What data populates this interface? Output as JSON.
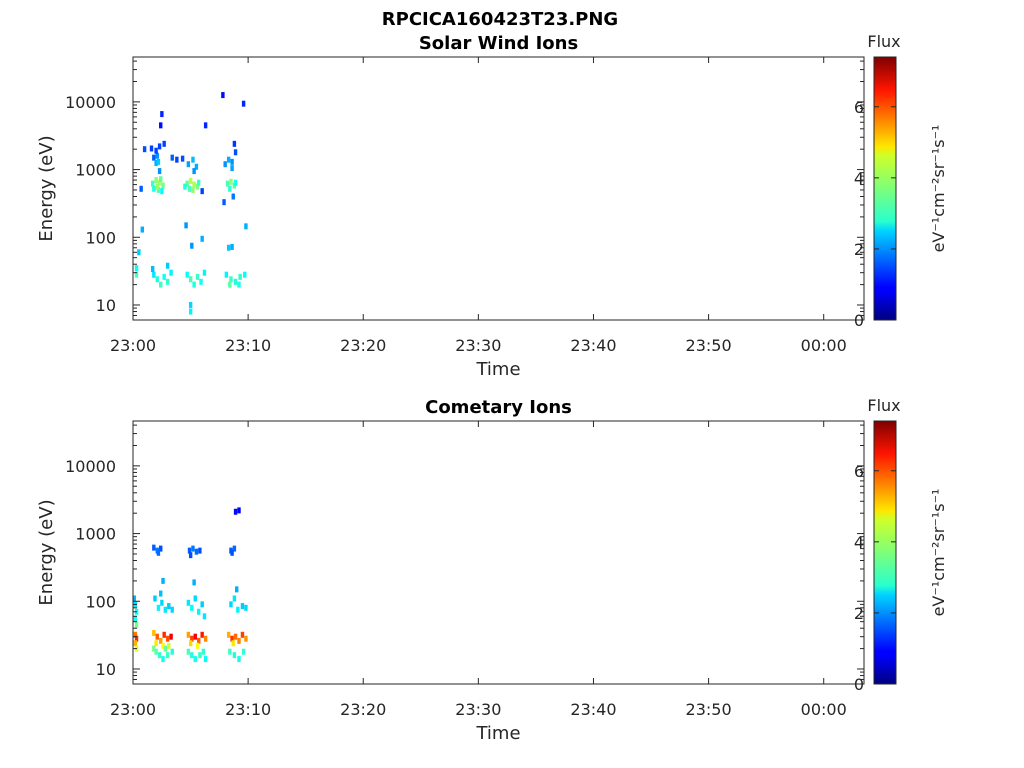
{
  "figure_title": "RPCICA160423T23.PNG",
  "colorbar": {
    "title": "Flux",
    "label": "eV⁻¹cm⁻²sr⁻¹s⁻¹",
    "range": [
      0,
      7.4
    ],
    "ticks": [
      "0",
      "2",
      "4",
      "6"
    ],
    "colormap": "jet"
  },
  "chart_data": [
    {
      "type": "heatmap",
      "title": "Solar Wind Ions",
      "xlabel": "Time",
      "ylabel": "Energy (eV)",
      "xlim_minutes": [
        0,
        63.5
      ],
      "x_ticks": [
        "23:00",
        "23:10",
        "23:20",
        "23:30",
        "23:40",
        "23:50",
        "00:00"
      ],
      "ylim": [
        6,
        46000
      ],
      "yscale": "log",
      "y_ticks": [
        "10",
        "100",
        "1000",
        "10000"
      ],
      "cells": [
        [
          0.3,
          35,
          2.8
        ],
        [
          0.3,
          28,
          3.3
        ],
        [
          0.7,
          520,
          1.6
        ],
        [
          1.0,
          2000,
          1.5
        ],
        [
          0.8,
          130,
          2.2
        ],
        [
          0.5,
          60,
          2.4
        ],
        [
          1.6,
          2050,
          1.4
        ],
        [
          1.8,
          1500,
          1.6
        ],
        [
          2.0,
          1250,
          2.2
        ],
        [
          2.1,
          1600,
          2.0
        ],
        [
          2.2,
          1300,
          2.4
        ],
        [
          2.3,
          2200,
          1.4
        ],
        [
          2.4,
          4500,
          1.0
        ],
        [
          2.5,
          6600,
          1.2
        ],
        [
          2.7,
          2400,
          1.4
        ],
        [
          2.0,
          1900,
          1.4
        ],
        [
          2.3,
          950,
          2.0
        ],
        [
          1.7,
          620,
          3.2
        ],
        [
          2.0,
          700,
          3.8
        ],
        [
          2.3,
          640,
          4.0
        ],
        [
          2.6,
          580,
          3.6
        ],
        [
          1.8,
          520,
          3.0
        ],
        [
          2.2,
          500,
          3.4
        ],
        [
          2.5,
          480,
          2.8
        ],
        [
          2.1,
          560,
          3.9
        ],
        [
          2.4,
          720,
          3.5
        ],
        [
          1.8,
          28,
          2.6
        ],
        [
          2.1,
          24,
          3.0
        ],
        [
          2.4,
          20,
          3.2
        ],
        [
          2.7,
          26,
          2.9
        ],
        [
          3.0,
          22,
          3.1
        ],
        [
          3.3,
          30,
          2.7
        ],
        [
          1.7,
          34,
          2.3
        ],
        [
          3.0,
          38,
          2.4
        ],
        [
          3.4,
          1500,
          1.6
        ],
        [
          3.8,
          1400,
          1.4
        ],
        [
          4.3,
          1450,
          1.5
        ],
        [
          4.6,
          150,
          2.0
        ],
        [
          4.8,
          1200,
          2.1
        ],
        [
          5.2,
          1400,
          2.3
        ],
        [
          5.5,
          1100,
          2.2
        ],
        [
          5.3,
          950,
          2.0
        ],
        [
          4.7,
          620,
          3.5
        ],
        [
          5.0,
          680,
          4.1
        ],
        [
          5.3,
          600,
          4.0
        ],
        [
          5.6,
          560,
          3.7
        ],
        [
          4.9,
          520,
          3.3
        ],
        [
          5.2,
          500,
          3.8
        ],
        [
          5.7,
          640,
          3.2
        ],
        [
          4.5,
          560,
          3.0
        ],
        [
          6.0,
          480,
          1.4
        ],
        [
          6.3,
          4500,
          1.2
        ],
        [
          6.0,
          95,
          2.2
        ],
        [
          5.1,
          75,
          2.0
        ],
        [
          4.7,
          28,
          2.8
        ],
        [
          5.0,
          24,
          3.3
        ],
        [
          5.3,
          20,
          3.0
        ],
        [
          5.6,
          26,
          3.2
        ],
        [
          5.9,
          22,
          2.9
        ],
        [
          6.2,
          30,
          2.7
        ],
        [
          5.0,
          10,
          2.5
        ],
        [
          5.0,
          8,
          2.7
        ],
        [
          7.8,
          12600,
          1.0
        ],
        [
          8.0,
          1200,
          2.0
        ],
        [
          8.3,
          1400,
          2.2
        ],
        [
          8.6,
          1300,
          2.0
        ],
        [
          8.6,
          1050,
          2.1
        ],
        [
          8.2,
          620,
          3.3
        ],
        [
          8.5,
          660,
          3.8
        ],
        [
          8.8,
          580,
          3.5
        ],
        [
          8.4,
          520,
          3.1
        ],
        [
          8.9,
          640,
          2.9
        ],
        [
          8.8,
          2400,
          1.3
        ],
        [
          8.9,
          1800,
          1.5
        ],
        [
          9.6,
          9400,
          1.2
        ],
        [
          7.9,
          330,
          1.6
        ],
        [
          8.7,
          400,
          1.8
        ],
        [
          9.8,
          145,
          2.2
        ],
        [
          8.3,
          70,
          2.4
        ],
        [
          8.6,
          72,
          2.2
        ],
        [
          8.1,
          28,
          2.7
        ],
        [
          8.5,
          24,
          3.2
        ],
        [
          8.9,
          22,
          3.0
        ],
        [
          9.3,
          26,
          3.1
        ],
        [
          9.7,
          28,
          2.8
        ],
        [
          8.4,
          20,
          3.4
        ],
        [
          9.2,
          20,
          3.0
        ]
      ]
    },
    {
      "type": "heatmap",
      "title": "Cometary Ions",
      "xlabel": "Time",
      "ylabel": "Energy (eV)",
      "xlim_minutes": [
        0,
        63.5
      ],
      "x_ticks": [
        "23:00",
        "23:10",
        "23:20",
        "23:30",
        "23:40",
        "23:50",
        "00:00"
      ],
      "ylim": [
        6,
        46000
      ],
      "yscale": "log",
      "y_ticks": [
        "10",
        "100",
        "1000",
        "10000"
      ],
      "cells": [
        [
          0.1,
          110,
          2.2
        ],
        [
          0.2,
          90,
          2.6
        ],
        [
          0.3,
          70,
          2.8
        ],
        [
          0.2,
          55,
          2.9
        ],
        [
          0.3,
          45,
          3.6
        ],
        [
          0.2,
          32,
          5.6
        ],
        [
          0.3,
          28,
          6.2
        ],
        [
          0.2,
          24,
          5.2
        ],
        [
          0.3,
          20,
          4.4
        ],
        [
          1.8,
          620,
          1.6
        ],
        [
          2.1,
          560,
          1.8
        ],
        [
          2.4,
          600,
          1.5
        ],
        [
          2.2,
          520,
          1.7
        ],
        [
          1.9,
          110,
          2.4
        ],
        [
          2.2,
          80,
          2.7
        ],
        [
          2.5,
          95,
          2.5
        ],
        [
          2.8,
          75,
          2.6
        ],
        [
          3.1,
          85,
          2.4
        ],
        [
          2.6,
          200,
          2.2
        ],
        [
          2.4,
          130,
          2.3
        ],
        [
          3.4,
          75,
          2.5
        ],
        [
          1.8,
          34,
          5.1
        ],
        [
          2.1,
          30,
          5.8
        ],
        [
          2.4,
          26,
          5.3
        ],
        [
          2.7,
          32,
          6.2
        ],
        [
          3.0,
          28,
          5.9
        ],
        [
          3.3,
          30,
          6.6
        ],
        [
          2.0,
          24,
          4.8
        ],
        [
          2.6,
          22,
          4.6
        ],
        [
          3.1,
          22,
          4.3
        ],
        [
          2.0,
          18,
          3.4
        ],
        [
          2.3,
          16,
          3.1
        ],
        [
          2.6,
          14,
          2.9
        ],
        [
          3.0,
          16,
          3.2
        ],
        [
          3.4,
          18,
          3.0
        ],
        [
          1.8,
          20,
          3.6
        ],
        [
          2.8,
          20,
          3.5
        ],
        [
          4.9,
          560,
          1.6
        ],
        [
          5.2,
          600,
          1.8
        ],
        [
          5.5,
          540,
          1.7
        ],
        [
          5.0,
          480,
          1.5
        ],
        [
          5.8,
          560,
          1.5
        ],
        [
          4.8,
          95,
          2.6
        ],
        [
          5.1,
          80,
          2.8
        ],
        [
          5.4,
          110,
          2.5
        ],
        [
          5.7,
          70,
          2.7
        ],
        [
          6.0,
          90,
          2.4
        ],
        [
          5.3,
          190,
          2.2
        ],
        [
          6.2,
          60,
          2.6
        ],
        [
          4.8,
          32,
          5.3
        ],
        [
          5.1,
          28,
          6.0
        ],
        [
          5.4,
          30,
          6.5
        ],
        [
          5.7,
          26,
          5.8
        ],
        [
          6.0,
          32,
          6.3
        ],
        [
          6.3,
          28,
          5.5
        ],
        [
          5.0,
          24,
          4.9
        ],
        [
          5.6,
          22,
          4.6
        ],
        [
          4.8,
          18,
          3.3
        ],
        [
          5.1,
          16,
          3.0
        ],
        [
          5.4,
          14,
          2.9
        ],
        [
          5.8,
          16,
          3.2
        ],
        [
          6.1,
          18,
          3.1
        ],
        [
          6.3,
          14,
          2.8
        ],
        [
          8.5,
          560,
          1.6
        ],
        [
          8.8,
          600,
          1.7
        ],
        [
          8.6,
          520,
          1.5
        ],
        [
          8.9,
          2100,
          1.0
        ],
        [
          9.2,
          2200,
          0.9
        ],
        [
          8.5,
          90,
          2.5
        ],
        [
          8.8,
          110,
          2.6
        ],
        [
          9.1,
          75,
          2.7
        ],
        [
          9.5,
          85,
          2.4
        ],
        [
          9.8,
          80,
          2.5
        ],
        [
          9.0,
          150,
          2.2
        ],
        [
          8.3,
          32,
          5.2
        ],
        [
          8.6,
          28,
          6.1
        ],
        [
          8.9,
          30,
          5.7
        ],
        [
          9.2,
          26,
          5.5
        ],
        [
          9.5,
          32,
          6.0
        ],
        [
          9.8,
          28,
          5.4
        ],
        [
          8.7,
          24,
          4.8
        ],
        [
          8.4,
          18,
          3.2
        ],
        [
          8.8,
          16,
          3.0
        ],
        [
          9.2,
          14,
          2.9
        ],
        [
          9.6,
          18,
          3.1
        ]
      ]
    }
  ]
}
